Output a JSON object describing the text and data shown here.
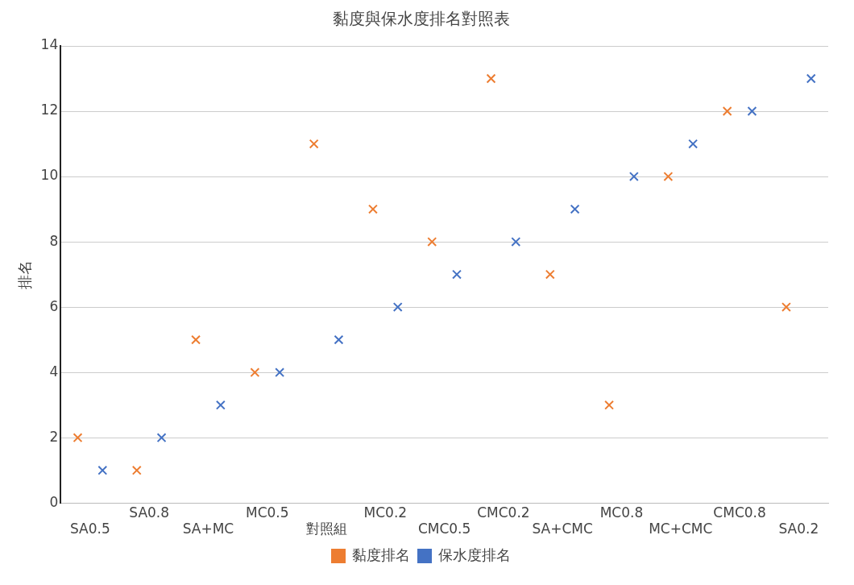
{
  "chart_data": {
    "type": "scatter",
    "title": "黏度與保水度排名對照表",
    "xlabel": null,
    "ylabel": "排名",
    "categories": [
      "SA0.5",
      "SA0.8",
      "SA+MC",
      "MC0.5",
      "對照組",
      "MC0.2",
      "CMC0.5",
      "CMC0.2",
      "SA+CMC",
      "MC0.8",
      "MC+CMC",
      "CMC0.8",
      "SA0.2"
    ],
    "series": [
      {
        "name": "黏度排名",
        "color": "#ed7d31",
        "values": [
          2,
          1,
          5,
          4,
          11,
          9,
          8,
          13,
          7,
          3,
          10,
          12,
          6
        ]
      },
      {
        "name": "保水度排名",
        "color": "#4472c4",
        "values": [
          1,
          2,
          3,
          4,
          5,
          6,
          7,
          8,
          9,
          10,
          11,
          12,
          13
        ]
      }
    ],
    "ylim": [
      0,
      14
    ],
    "yticks": [
      0,
      2,
      4,
      6,
      8,
      10,
      12,
      14
    ],
    "grid": "y",
    "legend": "bottom",
    "marker": "cross"
  }
}
